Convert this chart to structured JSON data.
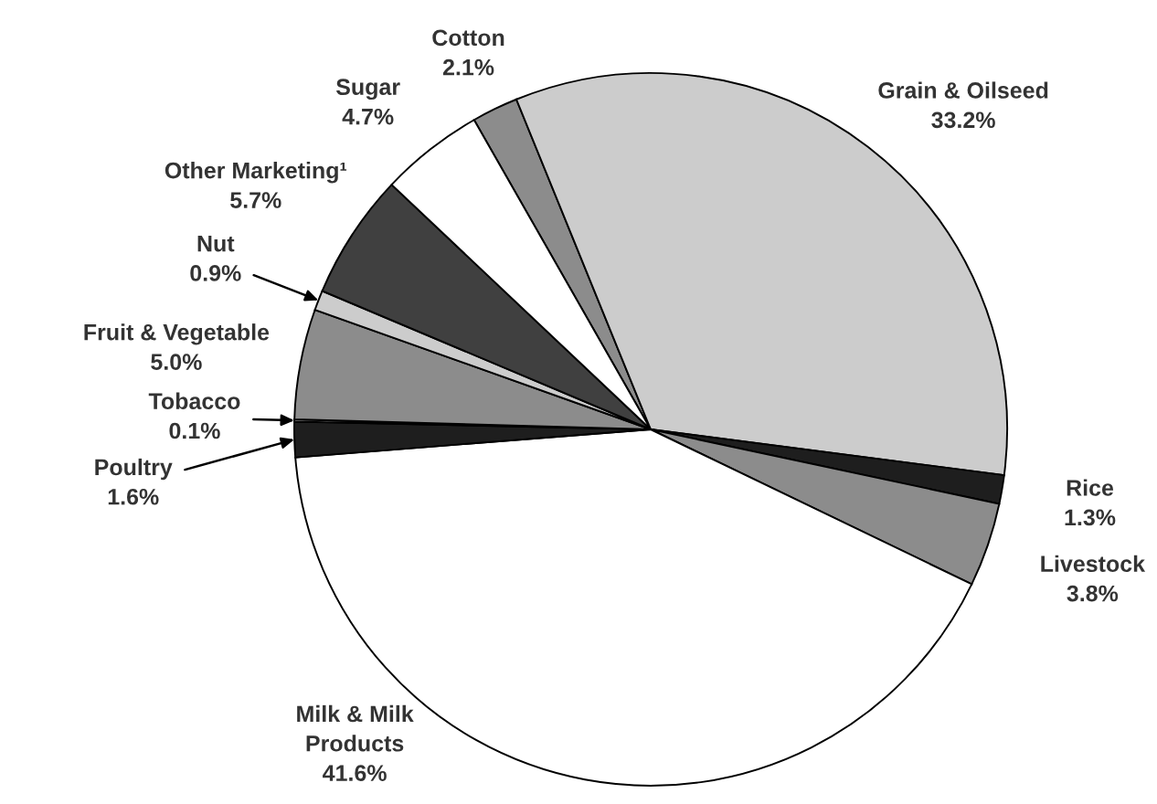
{
  "chart_data": {
    "type": "pie",
    "categories": [
      "Cotton",
      "Grain & Oilseed",
      "Rice",
      "Livestock",
      "Milk & Milk\nProducts",
      "Poultry",
      "Tobacco",
      "Fruit & Vegetable",
      "Nut",
      "Other Marketing¹",
      "Sugar"
    ],
    "values": [
      2.1,
      33.2,
      1.3,
      3.8,
      41.6,
      1.6,
      0.1,
      5.0,
      0.9,
      5.7,
      4.7
    ],
    "value_labels": [
      "2.1%",
      "33.2%",
      "1.3%",
      "3.8%",
      "41.6%",
      "1.6%",
      "0.1%",
      "5.0%",
      "0.9%",
      "5.7%",
      "4.7%"
    ],
    "colors": [
      "#8c8c8c",
      "#cccccc",
      "#1e1e1e",
      "#8c8c8c",
      "#ffffff",
      "#1e1e1e",
      "#cccccc",
      "#8c8c8c",
      "#cccccc",
      "#404040",
      "#ffffff"
    ]
  }
}
